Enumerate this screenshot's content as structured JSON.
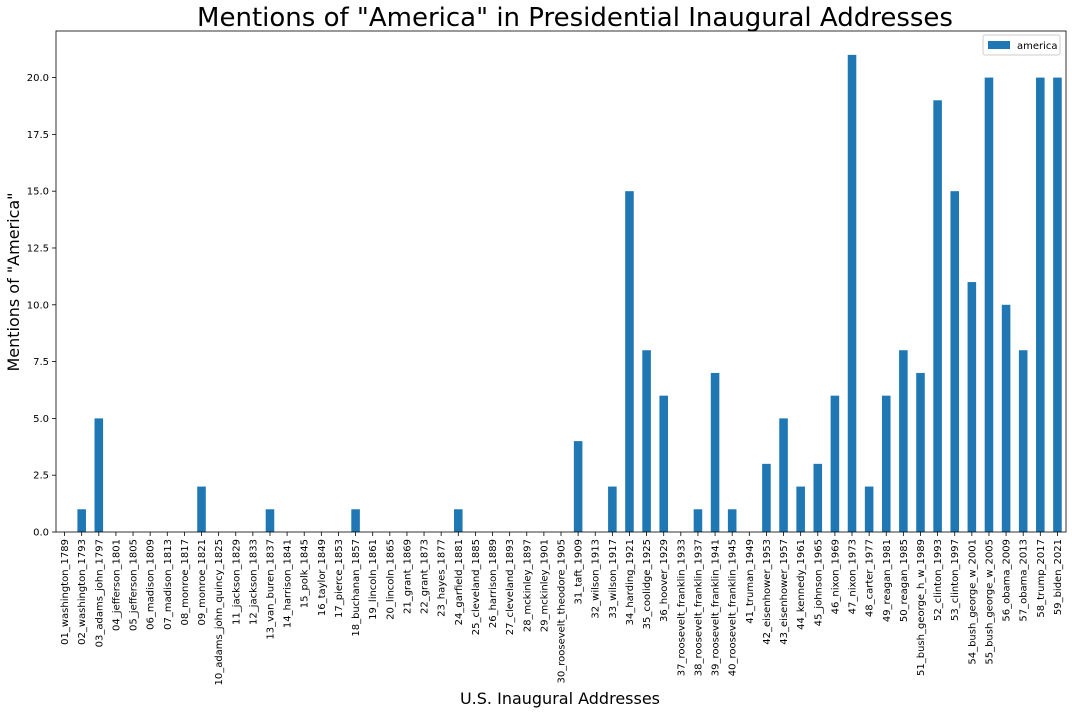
{
  "chart_data": {
    "type": "bar",
    "title": "Mentions of \"America\" in Presidential Inaugural Addresses",
    "xlabel": "U.S. Inaugural Addresses",
    "ylabel": "Mentions of \"America\"",
    "ylim": [
      0,
      22.05
    ],
    "yticks": [
      "0.0",
      "2.5",
      "5.0",
      "7.5",
      "10.0",
      "12.5",
      "15.0",
      "17.5",
      "20.0"
    ],
    "legend": {
      "placement": "top-right",
      "entries": [
        "america"
      ]
    },
    "series": [
      {
        "name": "america",
        "color": "#1f77b4",
        "values": [
          0,
          1,
          5,
          0,
          0,
          0,
          0,
          0,
          2,
          0,
          0,
          0,
          1,
          0,
          0,
          0,
          0,
          1,
          0,
          0,
          0,
          0,
          0,
          1,
          0,
          0,
          0,
          0,
          0,
          0,
          4,
          0,
          2,
          15,
          8,
          6,
          0,
          1,
          7,
          1,
          0,
          3,
          5,
          2,
          3,
          6,
          21,
          2,
          6,
          8,
          7,
          19,
          15,
          11,
          20,
          10,
          8,
          20,
          20
        ]
      }
    ],
    "categories": [
      "01_washington_1789",
      "02_washington_1793",
      "03_adams_john_1797",
      "04_jefferson_1801",
      "05_jefferson_1805",
      "06_madison_1809",
      "07_madison_1813",
      "08_monroe_1817",
      "09_monroe_1821",
      "10_adams_john_quincy_1825",
      "11_jackson_1829",
      "12_jackson_1833",
      "13_van_buren_1837",
      "14_harrison_1841",
      "15_polk_1845",
      "16_taylor_1849",
      "17_pierce_1853",
      "18_buchanan_1857",
      "19_lincoln_1861",
      "20_lincoln_1865",
      "21_grant_1869",
      "22_grant_1873",
      "23_hayes_1877",
      "24_garfield_1881",
      "25_cleveland_1885",
      "26_harrison_1889",
      "27_cleveland_1893",
      "28_mckinley_1897",
      "29_mckinley_1901",
      "30_roosevelt_theodore_1905",
      "31_taft_1909",
      "32_wilson_1913",
      "33_wilson_1917",
      "34_harding_1921",
      "35_coolidge_1925",
      "36_hoover_1929",
      "37_roosevelt_franklin_1933",
      "38_roosevelt_franklin_1937",
      "39_roosevelt_franklin_1941",
      "40_roosevelt_franklin_1945",
      "41_truman_1949",
      "42_eisenhower_1953",
      "43_eisenhower_1957",
      "44_kennedy_1961",
      "45_johnson_1965",
      "46_nixon_1969",
      "47_nixon_1973",
      "48_carter_1977",
      "49_reagan_1981",
      "50_reagan_1985",
      "51_bush_george_h_w_1989",
      "52_clinton_1993",
      "53_clinton_1997",
      "54_bush_george_w_2001",
      "55_bush_george_w_2005",
      "56_obama_2009",
      "57_obama_2013",
      "58_trump_2017",
      "59_biden_2021"
    ]
  }
}
